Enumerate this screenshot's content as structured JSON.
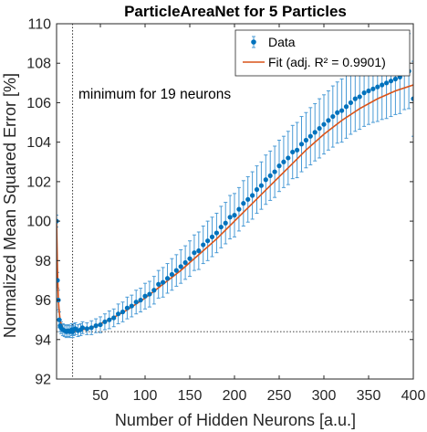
{
  "chart_data": {
    "type": "scatter",
    "title": "ParticleAreaNet for 5 Particles",
    "xlabel": "Number of Hidden Neurons [a.u.]",
    "ylabel": "Normalized Mean Squared Error [%]",
    "xlim": [
      1,
      400
    ],
    "ylim": [
      92,
      110
    ],
    "xticks": [
      50,
      100,
      150,
      200,
      250,
      300,
      350,
      400
    ],
    "yticks": [
      92,
      94,
      96,
      98,
      100,
      102,
      104,
      106,
      108,
      110
    ],
    "grid": false,
    "legend_position": "top-right",
    "annotation": "minimum for 19 neurons",
    "minimum": {
      "x": 19,
      "y": 94.4
    },
    "series": [
      {
        "name": "Data",
        "kind": "points-with-errorbars",
        "color": "#0072BD",
        "x": [
          1,
          2,
          3,
          4,
          5,
          6,
          8,
          10,
          12,
          14,
          16,
          18,
          19,
          20,
          22,
          25,
          28,
          30,
          35,
          40,
          45,
          50,
          55,
          60,
          65,
          70,
          75,
          80,
          85,
          90,
          95,
          100,
          105,
          110,
          115,
          120,
          125,
          130,
          135,
          140,
          145,
          150,
          155,
          160,
          165,
          170,
          175,
          180,
          185,
          190,
          195,
          200,
          205,
          210,
          215,
          220,
          225,
          230,
          235,
          240,
          245,
          250,
          255,
          260,
          265,
          270,
          275,
          280,
          285,
          290,
          295,
          300,
          305,
          310,
          315,
          320,
          325,
          330,
          335,
          340,
          345,
          350,
          355,
          360,
          365,
          370,
          375,
          380,
          385,
          390,
          395,
          400
        ],
        "y": [
          100.0,
          97.0,
          96.0,
          95.0,
          94.7,
          94.6,
          94.5,
          94.45,
          94.4,
          94.45,
          94.4,
          94.5,
          94.4,
          94.5,
          94.55,
          94.45,
          94.5,
          94.6,
          94.55,
          94.6,
          94.7,
          94.75,
          94.9,
          95.0,
          95.1,
          95.3,
          95.4,
          95.6,
          95.7,
          95.9,
          96.0,
          96.2,
          96.3,
          96.5,
          96.8,
          96.9,
          97.1,
          97.3,
          97.5,
          97.7,
          97.9,
          98.1,
          98.4,
          98.5,
          98.8,
          99.0,
          99.2,
          99.4,
          99.7,
          99.9,
          100.2,
          100.3,
          100.6,
          100.9,
          101.1,
          101.3,
          101.6,
          101.8,
          102.1,
          102.3,
          102.5,
          102.8,
          103.0,
          103.2,
          103.5,
          103.6,
          103.9,
          104.1,
          104.3,
          104.5,
          104.7,
          104.9,
          105.1,
          105.3,
          105.5,
          105.6,
          105.8,
          106.0,
          106.2,
          106.3,
          106.5,
          106.6,
          106.7,
          106.8,
          106.9,
          107.0,
          107.1,
          107.2,
          107.3,
          107.5,
          107.6,
          106.2
        ],
        "yerr": [
          0.3,
          0.4,
          0.5,
          0.4,
          0.3,
          0.3,
          0.3,
          0.3,
          0.3,
          0.3,
          0.3,
          0.3,
          0.3,
          0.3,
          0.3,
          0.3,
          0.3,
          0.3,
          0.3,
          0.35,
          0.35,
          0.4,
          0.4,
          0.45,
          0.45,
          0.5,
          0.5,
          0.55,
          0.55,
          0.6,
          0.6,
          0.65,
          0.65,
          0.7,
          0.7,
          0.75,
          0.75,
          0.8,
          0.8,
          0.85,
          0.85,
          0.9,
          0.9,
          0.95,
          0.95,
          1.0,
          1.0,
          1.0,
          1.05,
          1.05,
          1.1,
          1.1,
          1.1,
          1.15,
          1.15,
          1.2,
          1.2,
          1.2,
          1.25,
          1.25,
          1.3,
          1.3,
          1.3,
          1.35,
          1.35,
          1.4,
          1.4,
          1.4,
          1.45,
          1.45,
          1.5,
          1.5,
          1.5,
          1.55,
          1.55,
          1.6,
          1.6,
          1.6,
          1.65,
          1.65,
          1.7,
          1.7,
          1.7,
          1.75,
          1.75,
          1.8,
          1.8,
          1.8,
          1.85,
          1.85,
          1.9,
          1.9
        ]
      },
      {
        "name": "Fit (adj. R² = 0.9901)",
        "kind": "line",
        "color": "#D95319",
        "x": [
          1,
          2,
          3,
          4,
          5,
          6,
          8,
          10,
          12,
          14,
          16,
          19,
          22,
          25,
          30,
          40,
          50,
          60,
          70,
          80,
          90,
          100,
          120,
          140,
          160,
          180,
          200,
          220,
          240,
          260,
          280,
          300,
          320,
          340,
          360,
          380,
          400
        ],
        "y": [
          100.0,
          97.6,
          96.0,
          95.4,
          95.0,
          94.8,
          94.6,
          94.5,
          94.45,
          94.42,
          94.4,
          94.4,
          94.42,
          94.45,
          94.5,
          94.6,
          94.8,
          95.0,
          95.25,
          95.5,
          95.8,
          96.1,
          96.8,
          97.5,
          98.3,
          99.1,
          100.0,
          100.9,
          101.8,
          102.7,
          103.6,
          104.4,
          105.1,
          105.7,
          106.2,
          106.6,
          106.9
        ]
      }
    ]
  }
}
